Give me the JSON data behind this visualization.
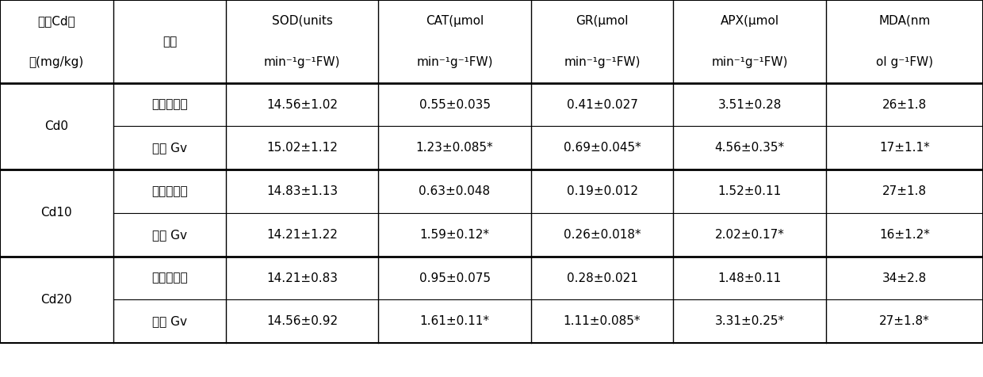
{
  "col_headers": [
    [
      "土壤Cd浓",
      "处理",
      "SOD(units",
      "CAT(μmol",
      "GR(μmol",
      "APX(μmol",
      "MDA(nm"
    ],
    [
      "度(mg/kg)",
      "",
      "min⁻¹g⁻¹FW)",
      "min⁻¹g⁻¹FW)",
      "min⁻¹g⁻¹FW)",
      "min⁻¹g⁻¹FW)",
      "ol g⁻¹FW)"
    ]
  ],
  "groups": [
    {
      "label": "Cd0",
      "rows": [
        [
          "未接种对照",
          "14.56±1.02",
          "0.55±0.035",
          "0.41±0.027",
          "3.51±0.28",
          "26±1.8"
        ],
        [
          "接种 Gv",
          "15.02±1.12",
          "1.23±0.085*",
          "0.69±0.045*",
          "4.56±0.35*",
          "17±1.1*"
        ]
      ]
    },
    {
      "label": "Cd10",
      "rows": [
        [
          "未接种对照",
          "14.83±1.13",
          "0.63±0.048",
          "0.19±0.012",
          "1.52±0.11",
          "27±1.8"
        ],
        [
          "接种 Gv",
          "14.21±1.22",
          "1.59±0.12*",
          "0.26±0.018*",
          "2.02±0.17*",
          "16±1.2*"
        ]
      ]
    },
    {
      "label": "Cd20",
      "rows": [
        [
          "未接种对照",
          "14.21±0.83",
          "0.95±0.075",
          "0.28±0.021",
          "1.48±0.11",
          "34±2.8"
        ],
        [
          "接种 Gv",
          "14.56±0.92",
          "1.61±0.11*",
          "1.11±0.085*",
          "3.31±0.25*",
          "27±1.8*"
        ]
      ]
    }
  ],
  "bg_color": "#ffffff",
  "border_color": "#000000",
  "text_color": "#000000",
  "font_size": 11,
  "header_font_size": 11
}
